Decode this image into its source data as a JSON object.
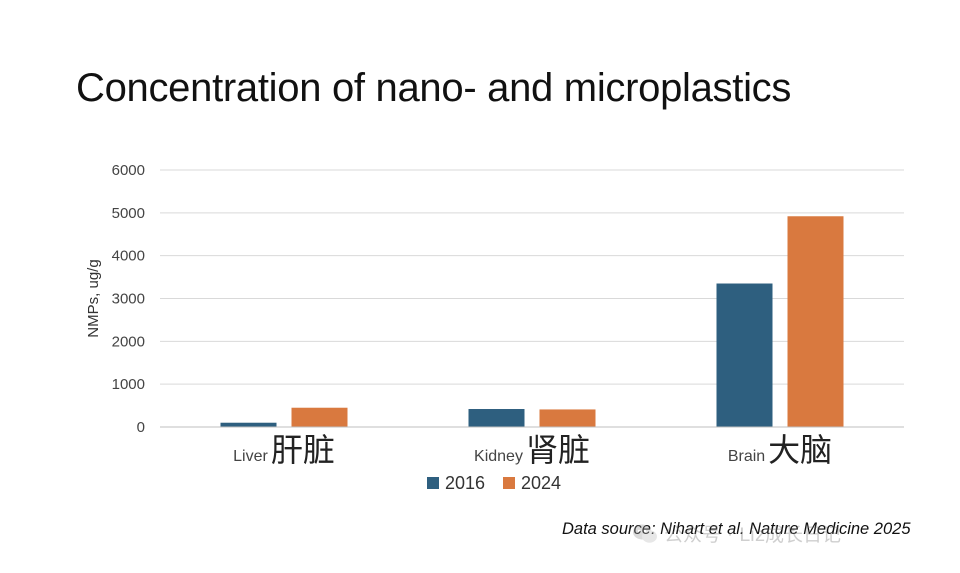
{
  "title": "Concentration of nano- and microplastics",
  "source": "Data source: Nihart et al. Nature Medicine 2025",
  "watermark": {
    "icon": "wechat-icon",
    "text": "公众号 · Liz成长日记"
  },
  "colors": {
    "series_2016": "#2e5f7f",
    "series_2024": "#d9793f",
    "grid": "#d9d9d9",
    "axis": "#bfbfbf"
  },
  "chart_data": {
    "type": "bar",
    "title": "Concentration of nano- and microplastics",
    "ylabel": "NMPs, ug/g",
    "xlabel": "",
    "ylim": [
      0,
      6000
    ],
    "yticks": [
      0,
      1000,
      2000,
      3000,
      4000,
      5000,
      6000
    ],
    "grid": true,
    "legend_position": "bottom",
    "categories": [
      {
        "en": "Liver",
        "zh": "肝脏"
      },
      {
        "en": "Kidney",
        "zh": "肾脏"
      },
      {
        "en": "Brain",
        "zh": "大脑"
      }
    ],
    "series": [
      {
        "name": "2016",
        "color": "#2e5f7f",
        "values": [
          100,
          420,
          3350
        ]
      },
      {
        "name": "2024",
        "color": "#d9793f",
        "values": [
          450,
          410,
          4920
        ]
      }
    ]
  }
}
